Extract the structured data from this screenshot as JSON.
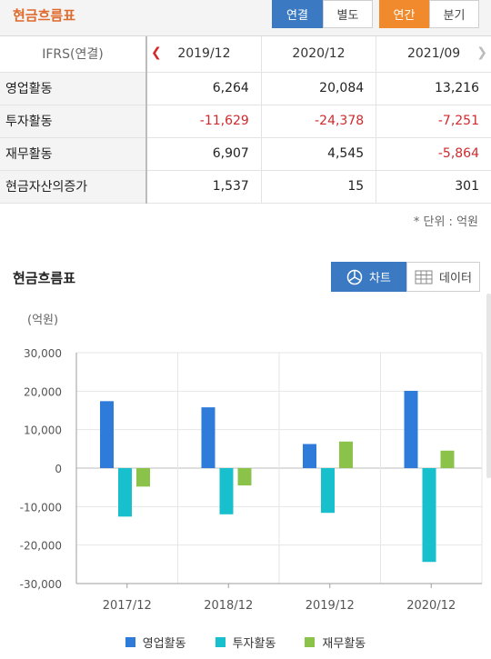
{
  "header": {
    "title": "현금흐름표",
    "consolidated_label": "연결",
    "separate_label": "별도",
    "annual_label": "연간",
    "quarterly_label": "분기"
  },
  "table": {
    "corner_label": "IFRS(연결)",
    "columns": [
      "2019/12",
      "2020/12",
      "2021/09"
    ],
    "rows": [
      {
        "label": "영업활동",
        "values": [
          "6,264",
          "20,084",
          "13,216"
        ]
      },
      {
        "label": "투자활동",
        "values": [
          "-11,629",
          "-24,378",
          "-7,251"
        ]
      },
      {
        "label": "재무활동",
        "values": [
          "6,907",
          "4,545",
          "-5,864"
        ]
      },
      {
        "label": "현금자산의증가",
        "values": [
          "1,537",
          "15",
          "301"
        ]
      }
    ]
  },
  "unit_note": "* 단위 : 억원",
  "chart_section": {
    "title": "현금흐름표",
    "chart_button": "차트",
    "data_button": "데이터"
  },
  "colors": {
    "operating": "#2e7bd9",
    "investing": "#17c0cc",
    "financing": "#8bc34a",
    "negative_text": "#d1292c",
    "active_blue": "#3b7ac3",
    "active_orange": "#f08a2c",
    "title_orange": "#e06a2c"
  },
  "chart_data": {
    "type": "bar",
    "unit_label": "(억원)",
    "categories": [
      "2017/12",
      "2018/12",
      "2019/12",
      "2020/12"
    ],
    "series": [
      {
        "name": "영업활동",
        "values": [
          17400,
          15800,
          6264,
          20084
        ]
      },
      {
        "name": "투자활동",
        "values": [
          -12600,
          -12000,
          -11629,
          -24378
        ]
      },
      {
        "name": "재무활동",
        "values": [
          -4800,
          -4500,
          6907,
          4545
        ]
      }
    ],
    "ylim": [
      -30000,
      30000
    ],
    "yticks": [
      "30,000",
      "20,000",
      "10,000",
      "0",
      "-10,000",
      "-20,000",
      "-30,000"
    ],
    "grid": true,
    "legend_position": "bottom"
  }
}
